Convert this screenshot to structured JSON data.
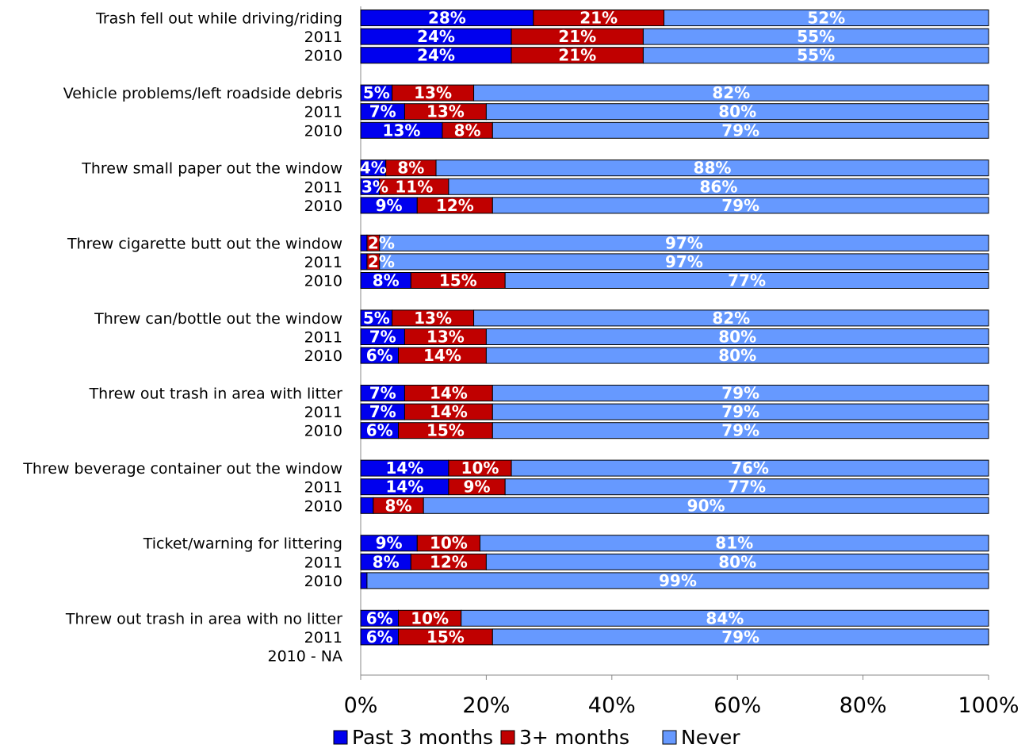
{
  "chart_data": {
    "type": "bar",
    "orientation": "horizontal",
    "stacked": true,
    "percent_scale": true,
    "xlim": [
      0,
      100
    ],
    "xticks": [
      "0%",
      "20%",
      "40%",
      "60%",
      "80%",
      "100%"
    ],
    "grid": false,
    "legend_position": "bottom",
    "series": [
      {
        "name": "Past 3 months",
        "color": "#0000ee"
      },
      {
        "name": "3+ months",
        "color": "#c00000"
      },
      {
        "name": "Never",
        "color": "#6699ff"
      }
    ],
    "groups": [
      {
        "rows": [
          {
            "label": "Trash fell  out while driving/riding",
            "values": [
              27.5,
              20.8,
              51.7
            ],
            "labels": [
              "28%",
              "21%",
              "52%"
            ]
          },
          {
            "label": "2011",
            "values": [
              24,
              21,
              55
            ],
            "labels": [
              "24%",
              "21%",
              "55%"
            ]
          },
          {
            "label": "2010",
            "values": [
              24,
              21,
              55
            ],
            "labels": [
              "24%",
              "21%",
              "55%"
            ]
          }
        ]
      },
      {
        "rows": [
          {
            "label": "Vehicle problems/left roadside debris",
            "values": [
              5,
              13,
              82
            ],
            "labels": [
              "5%",
              "13%",
              "82%"
            ]
          },
          {
            "label": "2011",
            "values": [
              7,
              13,
              80
            ],
            "labels": [
              "7%",
              "13%",
              "80%"
            ]
          },
          {
            "label": "2010",
            "values": [
              13,
              8,
              79
            ],
            "labels": [
              "13%",
              "8%",
              "79%"
            ]
          }
        ]
      },
      {
        "rows": [
          {
            "label": "Threw small paper out the window",
            "values": [
              4,
              8,
              88
            ],
            "labels": [
              "4%",
              "8%",
              "88%"
            ]
          },
          {
            "label": "2011",
            "values": [
              3,
              11,
              86
            ],
            "labels": [
              "3%",
              "11%",
              "86%"
            ]
          },
          {
            "label": "2010",
            "values": [
              9,
              12,
              79
            ],
            "labels": [
              "9%",
              "12%",
              "79%"
            ]
          }
        ]
      },
      {
        "rows": [
          {
            "label": "Threw cigarette butt out the window",
            "values": [
              1,
              2,
              97
            ],
            "labels": [
              "",
              "2%",
              "97%"
            ]
          },
          {
            "label": "2011",
            "values": [
              1,
              2,
              97
            ],
            "labels": [
              "",
              "2%",
              "97%"
            ]
          },
          {
            "label": "2010",
            "values": [
              8,
              15,
              77
            ],
            "labels": [
              "8%",
              "15%",
              "77%"
            ]
          }
        ]
      },
      {
        "rows": [
          {
            "label": "Threw can/bottle out the window",
            "values": [
              5,
              13,
              82
            ],
            "labels": [
              "5%",
              "13%",
              "82%"
            ]
          },
          {
            "label": "2011",
            "values": [
              7,
              13,
              80
            ],
            "labels": [
              "7%",
              "13%",
              "80%"
            ]
          },
          {
            "label": "2010",
            "values": [
              6,
              14,
              80
            ],
            "labels": [
              "6%",
              "14%",
              "80%"
            ]
          }
        ]
      },
      {
        "rows": [
          {
            "label": "Threw out trash in area with litter",
            "values": [
              7,
              14,
              79
            ],
            "labels": [
              "7%",
              "14%",
              "79%"
            ]
          },
          {
            "label": "2011",
            "values": [
              7,
              14,
              79
            ],
            "labels": [
              "7%",
              "14%",
              "79%"
            ]
          },
          {
            "label": "2010",
            "values": [
              6,
              15,
              79
            ],
            "labels": [
              "6%",
              "15%",
              "79%"
            ]
          }
        ]
      },
      {
        "rows": [
          {
            "label": "Threw beverage container out the window",
            "values": [
              14,
              10,
              76
            ],
            "labels": [
              "14%",
              "10%",
              "76%"
            ]
          },
          {
            "label": "2011",
            "values": [
              14,
              9,
              77
            ],
            "labels": [
              "14%",
              "9%",
              "77%"
            ]
          },
          {
            "label": "2010",
            "values": [
              2,
              8,
              90
            ],
            "labels": [
              "",
              "8%",
              "90%"
            ]
          }
        ]
      },
      {
        "rows": [
          {
            "label": "Ticket/warning for littering",
            "values": [
              9,
              10,
              81
            ],
            "labels": [
              "9%",
              "10%",
              "81%"
            ]
          },
          {
            "label": "2011",
            "values": [
              8,
              12,
              80
            ],
            "labels": [
              "8%",
              "12%",
              "80%"
            ]
          },
          {
            "label": "2010",
            "values": [
              1,
              0,
              99
            ],
            "labels": [
              "",
              "",
              "99%"
            ]
          }
        ]
      },
      {
        "rows": [
          {
            "label": "Threw out trash in area with no litter",
            "values": [
              6,
              10,
              84
            ],
            "labels": [
              "6%",
              "10%",
              "84%"
            ]
          },
          {
            "label": "2011",
            "values": [
              6,
              15,
              79
            ],
            "labels": [
              "6%",
              "15%",
              "79%"
            ]
          },
          {
            "label": "2010 - NA",
            "values": null,
            "labels": null
          }
        ]
      }
    ]
  }
}
